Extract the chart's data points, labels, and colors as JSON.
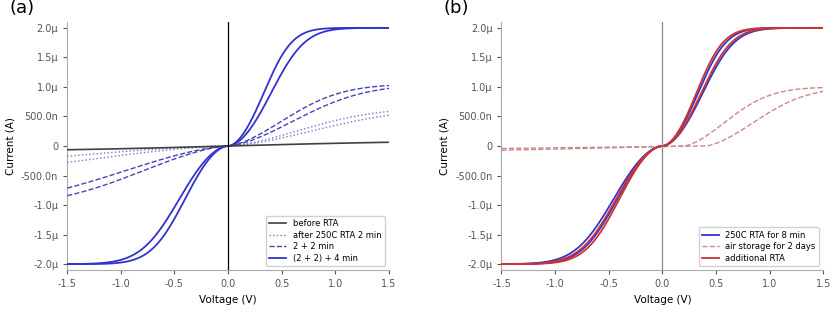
{
  "xlim": [
    -1.5,
    1.5
  ],
  "ylim": [
    -2.1e-06,
    2.1e-06
  ],
  "xlabel": "Voltage (V)",
  "ylabel": "Current (A)",
  "panel_a_label": "(a)",
  "panel_b_label": "(b)",
  "legend_a": [
    "before RTA",
    "after 250C RTA 2 min",
    "2 + 2 min",
    "(2 + 2) + 4 min"
  ],
  "legend_b": [
    "250C RTA for 8 min",
    "air storage for 2 days",
    "additional RTA"
  ],
  "color_black": "#404040",
  "color_blue_dotted": "#7777cc",
  "color_blue_dashed": "#4444bb",
  "color_blue_solid": "#3333cc",
  "color_red_dashed": "#cc8888",
  "color_red_solid": "#cc3333",
  "color_vline_a": "#000000",
  "color_vline_b": "#888888",
  "yticks": [
    -2e-06,
    -1.5e-06,
    -1e-06,
    -5e-07,
    0,
    5e-07,
    1e-06,
    1.5e-06,
    2e-06
  ],
  "ytick_labels": [
    "-2.0μ",
    "-1.5μ",
    "-1.0μ",
    "-500.0n",
    "0",
    "500.0n",
    "1.0μ",
    "1.5μ",
    "2.0μ"
  ],
  "xticks": [
    -1.5,
    -1.0,
    -0.5,
    0.0,
    0.5,
    1.0,
    1.5
  ],
  "xtick_labels": [
    "-1.5",
    "-1.0",
    "-0.5",
    "0.0",
    "0.5",
    "1.0",
    "1.5"
  ]
}
